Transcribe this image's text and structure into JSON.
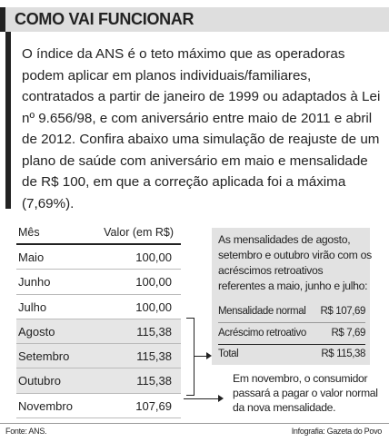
{
  "title": "COMO VAI FUNCIONAR",
  "intro": "O índice da ANS é o teto máximo que as operadoras podem aplicar em planos individuais/familiares, contratados a partir de janeiro de 1999 ou adaptados à Lei nº 9.656/98, e com aniversário entre maio de 2011 e abril de 2012. Confira abaixo uma simulação de reajuste de um plano de saúde com aniversário em maio e mensalidade de R$ 100, em que a correção aplicada foi a máxima (7,69%).",
  "table": {
    "header_month": "Mês",
    "header_value": "Valor (em R$)",
    "rows": [
      {
        "month": "Maio",
        "value": "100,00"
      },
      {
        "month": "Junho",
        "value": "100,00"
      },
      {
        "month": "Julho",
        "value": "100,00"
      },
      {
        "month": "Agosto",
        "value": "115,38"
      },
      {
        "month": "Setembro",
        "value": "115,38"
      },
      {
        "month": "Outubro",
        "value": "115,38"
      },
      {
        "month": "Novembro",
        "value": "107,69"
      }
    ]
  },
  "info_box": {
    "text": "As mensalidades de agosto, setembro e outubro virão com os acréscimos retroativos referentes a maio, junho e julho:",
    "monthly_label": "Mensalidade normal",
    "monthly_value": "R$ 107,69",
    "retro_label": "Acréscimo retroativo",
    "retro_value": "R$ 7,69",
    "total_label": "Total",
    "total_value": "R$ 115,38"
  },
  "november_note": "Em novembro, o consumidor passará a pagar o valor normal da nova mensalidade.",
  "footer": {
    "source": "Fonte: ANS.",
    "credit": "Infografia: Gazeta do Povo"
  }
}
